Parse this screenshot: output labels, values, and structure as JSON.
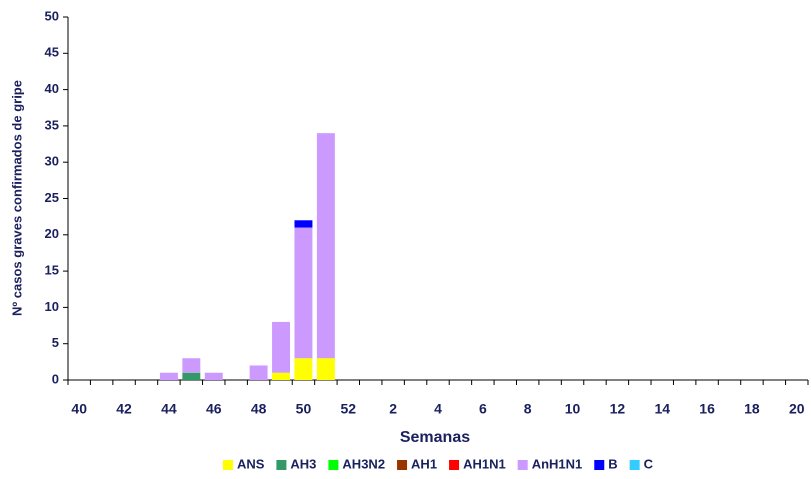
{
  "chart_data": {
    "type": "bar",
    "stacked": true,
    "x_label": "Semanas",
    "y_label": "Nº casos graves confirmados de gripe",
    "categories": [
      "40",
      null,
      "42",
      null,
      "44",
      null,
      "46",
      null,
      "48",
      null,
      "50",
      null,
      "52",
      null,
      "2",
      null,
      "4",
      null,
      "6",
      null,
      "8",
      null,
      "10",
      null,
      "12",
      null,
      "14",
      null,
      "16",
      null,
      "18",
      null,
      "20"
    ],
    "series": [
      {
        "name": "ANS",
        "color": "#ffff00",
        "values": [
          0,
          0,
          0,
          0,
          0,
          0,
          0,
          0,
          0,
          1,
          3,
          3,
          0,
          0,
          0,
          0,
          0,
          0,
          0,
          0,
          0,
          0,
          0,
          0,
          0,
          0,
          0,
          0,
          0,
          0,
          0,
          0,
          0
        ]
      },
      {
        "name": "AH3",
        "color": "#339966",
        "values": [
          0,
          0,
          0,
          0,
          0,
          1,
          0,
          0,
          0,
          0,
          0,
          0,
          0,
          0,
          0,
          0,
          0,
          0,
          0,
          0,
          0,
          0,
          0,
          0,
          0,
          0,
          0,
          0,
          0,
          0,
          0,
          0,
          0
        ]
      },
      {
        "name": "AH3N2",
        "color": "#00ff00",
        "values": [
          0,
          0,
          0,
          0,
          0,
          0,
          0,
          0,
          0,
          0,
          0,
          0,
          0,
          0,
          0,
          0,
          0,
          0,
          0,
          0,
          0,
          0,
          0,
          0,
          0,
          0,
          0,
          0,
          0,
          0,
          0,
          0,
          0
        ]
      },
      {
        "name": "AH1",
        "color": "#993300",
        "values": [
          0,
          0,
          0,
          0,
          0,
          0,
          0,
          0,
          0,
          0,
          0,
          0,
          0,
          0,
          0,
          0,
          0,
          0,
          0,
          0,
          0,
          0,
          0,
          0,
          0,
          0,
          0,
          0,
          0,
          0,
          0,
          0,
          0
        ]
      },
      {
        "name": "AH1N1",
        "color": "#ff0000",
        "values": [
          0,
          0,
          0,
          0,
          0,
          0,
          0,
          0,
          0,
          0,
          0,
          0,
          0,
          0,
          0,
          0,
          0,
          0,
          0,
          0,
          0,
          0,
          0,
          0,
          0,
          0,
          0,
          0,
          0,
          0,
          0,
          0,
          0
        ]
      },
      {
        "name": "AnH1N1",
        "color": "#cc99ff",
        "values": [
          0,
          0,
          0,
          0,
          1,
          2,
          1,
          0,
          2,
          7,
          18,
          31,
          0,
          0,
          0,
          0,
          0,
          0,
          0,
          0,
          0,
          0,
          0,
          0,
          0,
          0,
          0,
          0,
          0,
          0,
          0,
          0,
          0
        ]
      },
      {
        "name": "B",
        "color": "#0000ff",
        "values": [
          0,
          0,
          0,
          0,
          0,
          0,
          0,
          0,
          0,
          0,
          1,
          0,
          0,
          0,
          0,
          0,
          0,
          0,
          0,
          0,
          0,
          0,
          0,
          0,
          0,
          0,
          0,
          0,
          0,
          0,
          0,
          0,
          0
        ]
      },
      {
        "name": "C",
        "color": "#33ccff",
        "values": [
          0,
          0,
          0,
          0,
          0,
          0,
          0,
          0,
          0,
          0,
          0,
          0,
          0,
          0,
          0,
          0,
          0,
          0,
          0,
          0,
          0,
          0,
          0,
          0,
          0,
          0,
          0,
          0,
          0,
          0,
          0,
          0,
          0
        ]
      }
    ],
    "ylim": [
      0,
      50
    ],
    "yticks": [
      0,
      5,
      10,
      15,
      20,
      25,
      30,
      35,
      40,
      45,
      50
    ],
    "grid": false,
    "legend": "bottom"
  }
}
